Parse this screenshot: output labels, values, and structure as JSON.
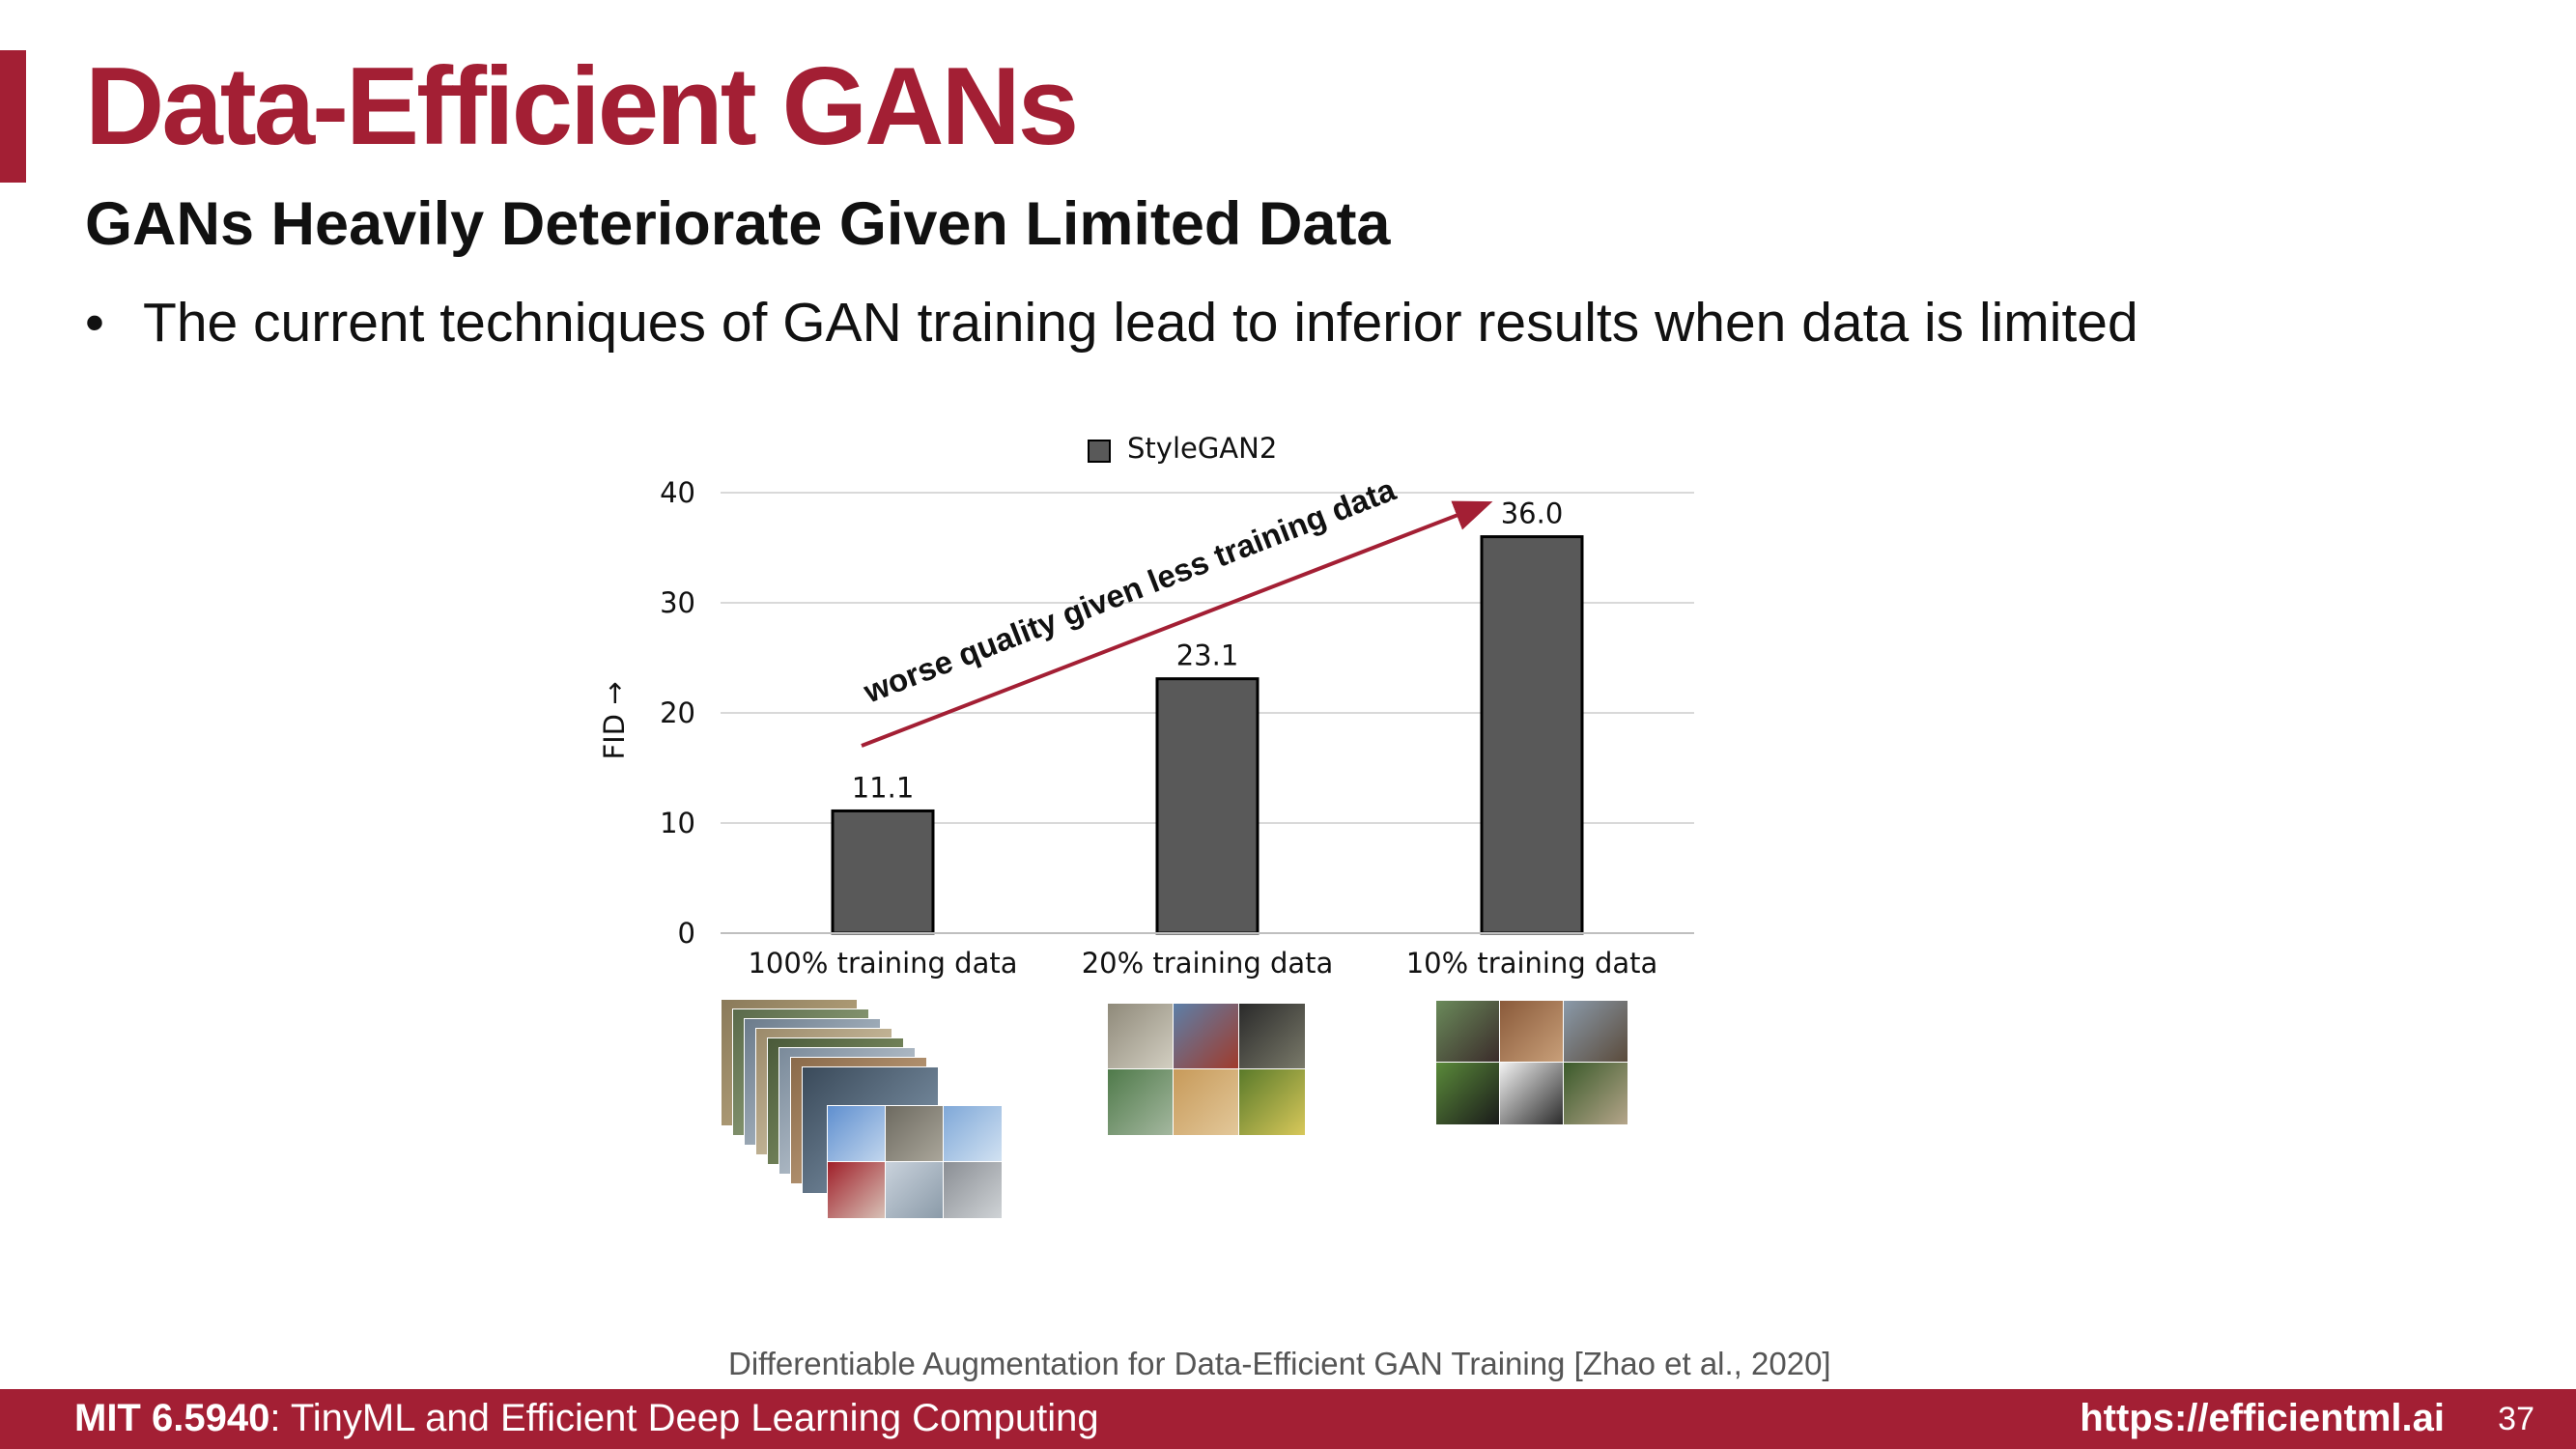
{
  "slide": {
    "title": "Data-Efficient GANs",
    "subtitle": "GANs Heavily Deteriorate Given Limited Data",
    "bullet": "The current techniques of GAN training lead to inferior results when data is limited",
    "bullet_marker": "•",
    "citation": "Differentiable Augmentation for Data-Efficient GAN Training [Zhao et al., 2020]"
  },
  "footer": {
    "course_code": "MIT 6.5940",
    "course_name": ": TinyML and Efficient Deep Learning Computing",
    "url": "https://efficientml.ai",
    "page_number": "37"
  },
  "colors": {
    "accent": "#a31f34",
    "bar_fill": "#595959",
    "bar_stroke": "#000000",
    "grid": "#d9d9d9"
  },
  "chart_data": {
    "type": "bar",
    "categories": [
      "100% training data",
      "20% training data",
      "10% training data"
    ],
    "series": [
      {
        "name": "StyleGAN2",
        "values": [
          11.1,
          23.1,
          36.0
        ],
        "labels": [
          "11.1",
          "23.1",
          "36.0"
        ]
      }
    ],
    "ylabel": "FID →",
    "ylim": [
      0,
      40
    ],
    "yticks": [
      0,
      10,
      20,
      30,
      40
    ],
    "grid": true,
    "legend_position": "top",
    "annotation": "worse quality given less training data"
  }
}
